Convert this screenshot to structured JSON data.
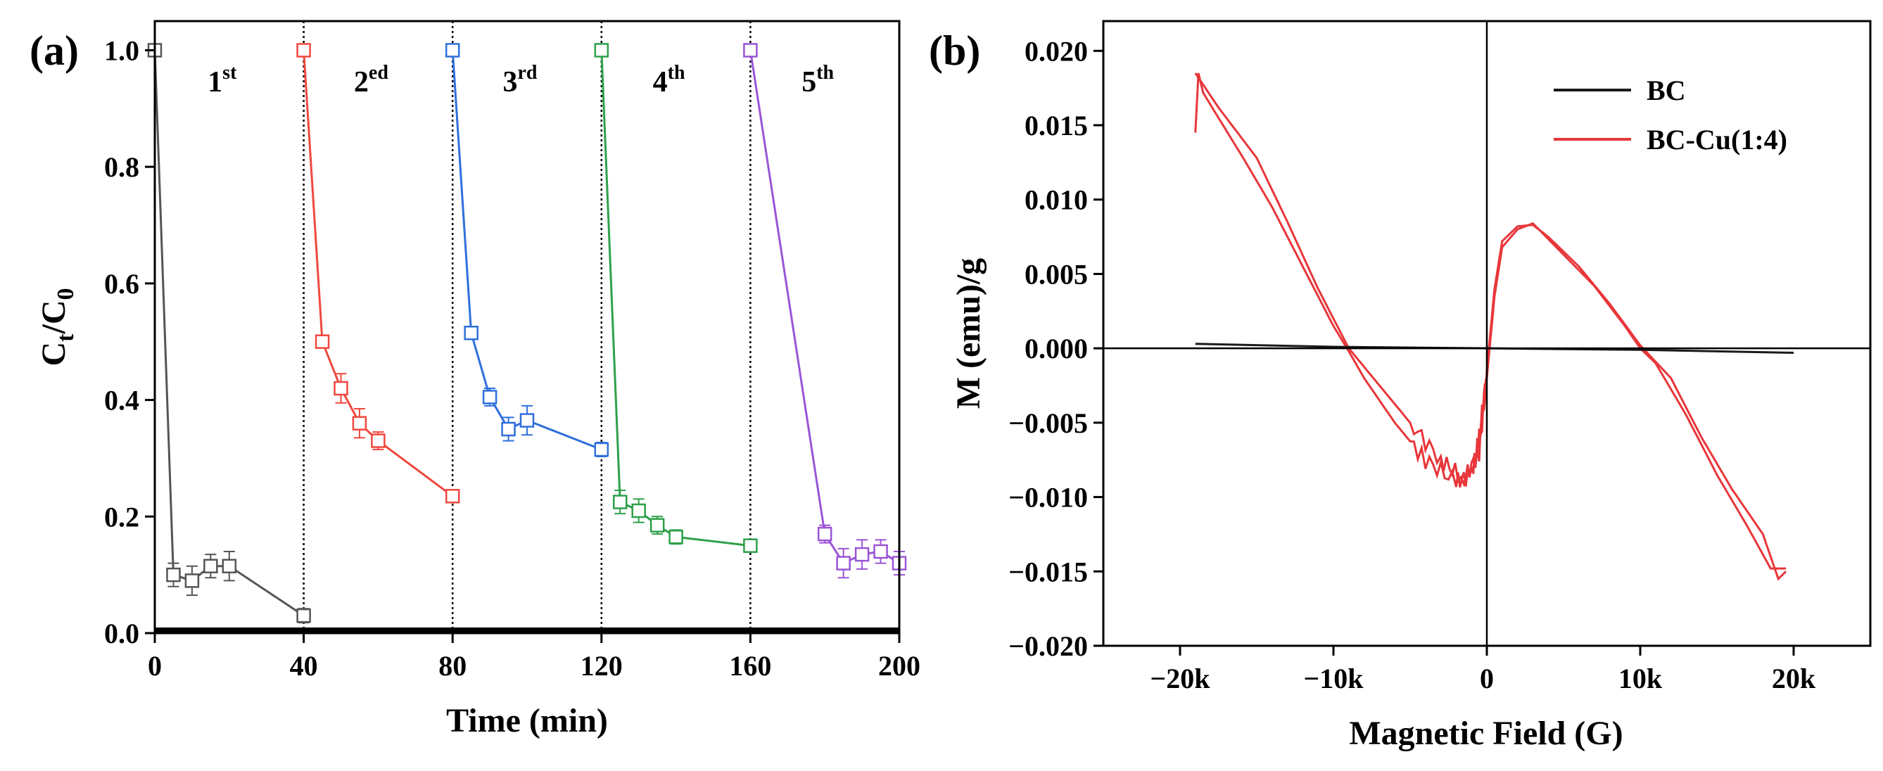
{
  "colors": {
    "cycle1": "#555555",
    "cycle2": "#f0483e",
    "cycle3": "#2f6fdb",
    "cycle4": "#2ea04a",
    "cycle5": "#9a55d6",
    "bc": "#1a1a1a",
    "bccu": "#e8363a"
  },
  "chart_data": [
    {
      "type": "line",
      "panel_label": "(a)",
      "xlabel": "Time (min)",
      "ylabel": {
        "base": "C",
        "sub1": "t",
        "slash": "/C",
        "sub2": "0"
      },
      "xlim": [
        0,
        200
      ],
      "ylim": [
        0.0,
        1.05
      ],
      "xticks": [
        "0",
        "40",
        "80",
        "120",
        "160",
        "200"
      ],
      "yticks": [
        "0.0",
        "0.2",
        "0.4",
        "0.6",
        "0.8",
        "1.0"
      ],
      "cycle_boundaries": [
        40,
        80,
        120,
        160
      ],
      "cycle_labels": [
        {
          "num": "1",
          "sup": "st"
        },
        {
          "num": "2",
          "sup": "ed"
        },
        {
          "num": "3",
          "sup": "rd"
        },
        {
          "num": "4",
          "sup": "th"
        },
        {
          "num": "5",
          "sup": "th"
        }
      ],
      "series": [
        {
          "name": "1st",
          "x": [
            0,
            5,
            10,
            15,
            20,
            40
          ],
          "y": [
            1.0,
            0.1,
            0.09,
            0.115,
            0.115,
            0.03
          ],
          "err": [
            0,
            0.02,
            0.025,
            0.02,
            0.025,
            0.012
          ]
        },
        {
          "name": "2ed",
          "x": [
            40,
            45,
            50,
            55,
            60,
            80
          ],
          "y": [
            1.0,
            0.5,
            0.42,
            0.36,
            0.33,
            0.235
          ],
          "err": [
            0,
            0.01,
            0.025,
            0.025,
            0.015,
            0.01
          ]
        },
        {
          "name": "3rd",
          "x": [
            80,
            85,
            90,
            95,
            100,
            120
          ],
          "y": [
            1.0,
            0.515,
            0.405,
            0.35,
            0.365,
            0.315
          ],
          "err": [
            0,
            0.01,
            0.015,
            0.02,
            0.025,
            0.012
          ]
        },
        {
          "name": "4th",
          "x": [
            120,
            125,
            130,
            135,
            140,
            160
          ],
          "y": [
            1.0,
            0.225,
            0.21,
            0.185,
            0.165,
            0.15
          ],
          "err": [
            0,
            0.02,
            0.02,
            0.015,
            0.012,
            0.01
          ]
        },
        {
          "name": "5th",
          "x": [
            160,
            180,
            185,
            190,
            195,
            200
          ],
          "y": [
            1.0,
            0.17,
            0.12,
            0.135,
            0.14,
            0.12
          ],
          "err": [
            0,
            0.015,
            0.025,
            0.025,
            0.02,
            0.02
          ]
        }
      ]
    },
    {
      "type": "line",
      "panel_label": "(b)",
      "xlabel": "Magnetic Field (G)",
      "ylabel": "M (emu)/g",
      "xlim": [
        -25000,
        25000
      ],
      "ylim": [
        -0.02,
        0.022
      ],
      "xticks": [
        {
          "value": -20000,
          "label": "−20k"
        },
        {
          "value": -10000,
          "label": "−10k"
        },
        {
          "value": 0,
          "label": "0"
        },
        {
          "value": 10000,
          "label": "10k"
        },
        {
          "value": 20000,
          "label": "20k"
        }
      ],
      "yticks": [
        {
          "value": 0.02,
          "label": "0.020"
        },
        {
          "value": 0.015,
          "label": "0.015"
        },
        {
          "value": 0.01,
          "label": "0.010"
        },
        {
          "value": 0.005,
          "label": "0.005"
        },
        {
          "value": 0.0,
          "label": "0.000"
        },
        {
          "value": -0.005,
          "label": "−0.005"
        },
        {
          "value": -0.01,
          "label": "−0.010"
        },
        {
          "value": -0.015,
          "label": "−0.015"
        },
        {
          "value": -0.02,
          "label": "−0.020"
        }
      ],
      "legend_position": "top-right",
      "series": [
        {
          "name": "BC",
          "x": [
            -19000,
            -10000,
            0,
            10000,
            20000
          ],
          "y": [
            0.0003,
            0.0001,
            0.0,
            -0.0001,
            -0.0003
          ]
        },
        {
          "name": "BC-Cu(1:4)",
          "branches": [
            {
              "x": [
                -19000,
                -18800,
                -18500,
                -17500,
                -16000,
                -14000,
                -12000,
                -10000,
                -9000,
                -8000,
                -6000,
                -4000,
                -2000,
                -1000,
                -500,
                0,
                500,
                1000,
                2000,
                3000,
                4000,
                6000,
                8000,
                10000,
                12000,
                14000,
                16000,
                18000,
                19000,
                19500
              ],
              "y": [
                0.0145,
                0.0185,
                0.0172,
                0.0155,
                0.013,
                0.0095,
                0.0055,
                0.0015,
                -0.0002,
                -0.002,
                -0.005,
                -0.0075,
                -0.009,
                -0.0085,
                -0.006,
                -0.0015,
                0.004,
                0.0072,
                0.0082,
                0.0083,
                0.0075,
                0.0055,
                0.003,
                0.0002,
                -0.002,
                -0.006,
                -0.0095,
                -0.0125,
                -0.0155,
                -0.015
              ]
            },
            {
              "x": [
                -19000,
                -17500,
                -15000,
                -13000,
                -11000,
                -9000,
                -7000,
                -5000,
                -3000,
                -1500,
                -500,
                0,
                500,
                1000,
                2000,
                3000,
                5000,
                7000,
                9000,
                10000,
                11000,
                13000,
                15000,
                17000,
                18500,
                19500
              ],
              "y": [
                0.0185,
                0.0162,
                0.0128,
                0.0085,
                0.004,
                0.0,
                -0.0025,
                -0.005,
                -0.0075,
                -0.0088,
                -0.007,
                -0.002,
                0.0035,
                0.0068,
                0.008,
                0.0084,
                0.0063,
                0.0042,
                0.0015,
                0.0,
                -0.001,
                -0.0045,
                -0.0085,
                -0.012,
                -0.0148,
                -0.0148
              ]
            }
          ]
        }
      ]
    }
  ]
}
